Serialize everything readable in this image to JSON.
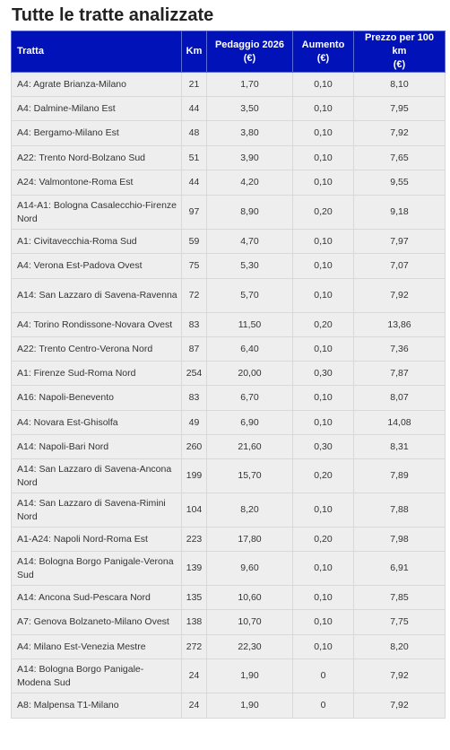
{
  "title": "Tutte le tratte analizzate",
  "headers": {
    "tratta": "Tratta",
    "km": "Km",
    "pedaggio_l1": "Pedaggio 2026",
    "pedaggio_l2": "(€)",
    "aumento_l1": "Aumento",
    "aumento_l2": "(€)",
    "prezzo_l1": "Prezzo per 100 km",
    "prezzo_l2": "(€)"
  },
  "rows": [
    {
      "tratta": "A4: Agrate Brianza-Milano",
      "km": "21",
      "pedaggio": "1,70",
      "aumento": "0,10",
      "prezzo": "8,10"
    },
    {
      "tratta": "A4: Dalmine-Milano Est",
      "km": "44",
      "pedaggio": "3,50",
      "aumento": "0,10",
      "prezzo": "7,95"
    },
    {
      "tratta": "A4: Bergamo-Milano Est",
      "km": "48",
      "pedaggio": "3,80",
      "aumento": "0,10",
      "prezzo": "7,92"
    },
    {
      "tratta": "A22: Trento Nord-Bolzano Sud",
      "km": "51",
      "pedaggio": "3,90",
      "aumento": "0,10",
      "prezzo": "7,65"
    },
    {
      "tratta": "A24: Valmontone-Roma Est",
      "km": "44",
      "pedaggio": "4,20",
      "aumento": "0,10",
      "prezzo": "9,55"
    },
    {
      "tratta": "A14-A1: Bologna Casalecchio-Firenze Nord",
      "km": "97",
      "pedaggio": "8,90",
      "aumento": "0,20",
      "prezzo": "9,18"
    },
    {
      "tratta": "A1: Civitavecchia-Roma Sud",
      "km": "59",
      "pedaggio": "4,70",
      "aumento": "0,10",
      "prezzo": "7,97"
    },
    {
      "tratta": "A4: Verona Est-Padova Ovest",
      "km": "75",
      "pedaggio": "5,30",
      "aumento": "0,10",
      "prezzo": "7,07"
    },
    {
      "tratta": "A14: San Lazzaro di Savena-Ravenna",
      "km": "72",
      "pedaggio": "5,70",
      "aumento": "0,10",
      "prezzo": "7,92"
    },
    {
      "tratta": "A4: Torino Rondissone-Novara Ovest",
      "km": "83",
      "pedaggio": "11,50",
      "aumento": "0,20",
      "prezzo": "13,86"
    },
    {
      "tratta": "A22: Trento Centro-Verona Nord",
      "km": "87",
      "pedaggio": "6,40",
      "aumento": "0,10",
      "prezzo": "7,36"
    },
    {
      "tratta": "A1: Firenze Sud-Roma Nord",
      "km": "254",
      "pedaggio": "20,00",
      "aumento": "0,30",
      "prezzo": "7,87"
    },
    {
      "tratta": "A16: Napoli-Benevento",
      "km": "83",
      "pedaggio": "6,70",
      "aumento": "0,10",
      "prezzo": "8,07"
    },
    {
      "tratta": "A4: Novara Est-Ghisolfa",
      "km": "49",
      "pedaggio": "6,90",
      "aumento": "0,10",
      "prezzo": "14,08"
    },
    {
      "tratta": "A14: Napoli-Bari Nord",
      "km": "260",
      "pedaggio": "21,60",
      "aumento": "0,30",
      "prezzo": "8,31"
    },
    {
      "tratta": "A14: San Lazzaro di Savena-Ancona Nord",
      "km": "199",
      "pedaggio": "15,70",
      "aumento": "0,20",
      "prezzo": "7,89"
    },
    {
      "tratta": "A14: San Lazzaro di Savena-Rimini Nord",
      "km": "104",
      "pedaggio": "8,20",
      "aumento": "0,10",
      "prezzo": "7,88"
    },
    {
      "tratta": "A1-A24: Napoli Nord-Roma Est",
      "km": "223",
      "pedaggio": "17,80",
      "aumento": "0,20",
      "prezzo": "7,98"
    },
    {
      "tratta": "A14: Bologna Borgo Panigale-Verona Sud",
      "km": "139",
      "pedaggio": "9,60",
      "aumento": "0,10",
      "prezzo": "6,91"
    },
    {
      "tratta": "A14: Ancona Sud-Pescara Nord",
      "km": "135",
      "pedaggio": "10,60",
      "aumento": "0,10",
      "prezzo": "7,85"
    },
    {
      "tratta": "A7: Genova Bolzaneto-Milano Ovest",
      "km": "138",
      "pedaggio": "10,70",
      "aumento": "0,10",
      "prezzo": "7,75"
    },
    {
      "tratta": "A4: Milano Est-Venezia Mestre",
      "km": "272",
      "pedaggio": "22,30",
      "aumento": "0,10",
      "prezzo": "8,20"
    },
    {
      "tratta": "A14: Bologna Borgo Panigale-Modena Sud",
      "km": "24",
      "pedaggio": "1,90",
      "aumento": "0",
      "prezzo": "7,92"
    },
    {
      "tratta": "A8: Malpensa T1-Milano",
      "km": "24",
      "pedaggio": "1,90",
      "aumento": "0",
      "prezzo": "7,92"
    }
  ]
}
